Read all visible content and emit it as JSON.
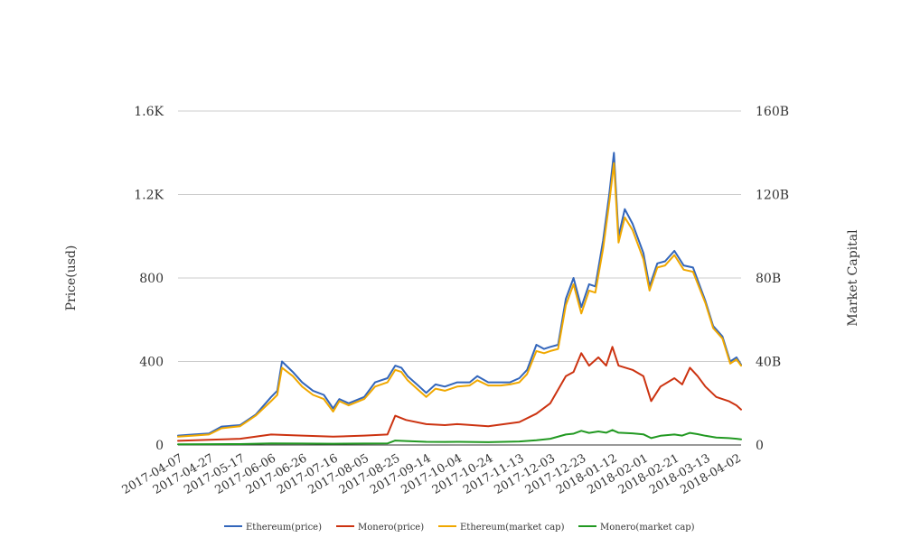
{
  "chart_data": {
    "type": "line",
    "title": "",
    "ylabel_left": "Price(usd)",
    "ylabel_right": "Market Capital",
    "ylim_left": [
      0,
      1600
    ],
    "ylim_right": [
      0,
      160000000000
    ],
    "yticks_left": [
      {
        "value": 0,
        "label": "0"
      },
      {
        "value": 400,
        "label": "400"
      },
      {
        "value": 800,
        "label": "800"
      },
      {
        "value": 1200,
        "label": "1.2K"
      },
      {
        "value": 1600,
        "label": "1.6K"
      }
    ],
    "yticks_right": [
      {
        "value": 0,
        "label": "0"
      },
      {
        "value": 40000000000,
        "label": "40B"
      },
      {
        "value": 80000000000,
        "label": "80B"
      },
      {
        "value": 120000000000,
        "label": "120B"
      },
      {
        "value": 160000000000,
        "label": "160B"
      }
    ],
    "x_range": [
      "2017-04-07",
      "2018-04-05"
    ],
    "xticks": [
      "2017-04-07",
      "2017-04-27",
      "2017-05-17",
      "2017-06-06",
      "2017-06-26",
      "2017-07-16",
      "2017-08-05",
      "2017-08-25",
      "2017-09-14",
      "2017-10-04",
      "2017-10-24",
      "2017-11-13",
      "2017-12-03",
      "2017-12-23",
      "2018-01-12",
      "2018-02-01",
      "2018-02-21",
      "2018-03-13",
      "2018-04-02"
    ],
    "grid": true,
    "legend_position": "bottom",
    "series": [
      {
        "name": "Ethereum(price)",
        "axis": "left",
        "color": "#3366bb",
        "x": [
          "2017-04-07",
          "2017-04-17",
          "2017-04-27",
          "2017-05-05",
          "2017-05-17",
          "2017-05-27",
          "2017-06-06",
          "2017-06-10",
          "2017-06-13",
          "2017-06-20",
          "2017-06-26",
          "2017-07-03",
          "2017-07-10",
          "2017-07-16",
          "2017-07-20",
          "2017-07-26",
          "2017-08-05",
          "2017-08-12",
          "2017-08-20",
          "2017-08-25",
          "2017-08-29",
          "2017-09-02",
          "2017-09-08",
          "2017-09-14",
          "2017-09-20",
          "2017-09-26",
          "2017-10-04",
          "2017-10-12",
          "2017-10-17",
          "2017-10-24",
          "2017-11-01",
          "2017-11-07",
          "2017-11-13",
          "2017-11-18",
          "2017-11-24",
          "2017-11-29",
          "2017-12-03",
          "2017-12-08",
          "2017-12-13",
          "2017-12-18",
          "2017-12-23",
          "2017-12-28",
          "2018-01-01",
          "2018-01-06",
          "2018-01-10",
          "2018-01-13",
          "2018-01-16",
          "2018-01-20",
          "2018-01-25",
          "2018-02-01",
          "2018-02-05",
          "2018-02-10",
          "2018-02-15",
          "2018-02-21",
          "2018-02-27",
          "2018-03-05",
          "2018-03-13",
          "2018-03-18",
          "2018-03-24",
          "2018-03-29",
          "2018-04-02",
          "2018-04-05"
        ],
        "values": [
          45,
          50,
          55,
          88,
          95,
          145,
          230,
          260,
          400,
          350,
          300,
          260,
          240,
          175,
          220,
          200,
          230,
          300,
          320,
          380,
          370,
          330,
          290,
          250,
          290,
          280,
          300,
          300,
          330,
          300,
          300,
          300,
          320,
          360,
          480,
          460,
          470,
          480,
          700,
          800,
          660,
          770,
          760,
          980,
          1200,
          1400,
          1000,
          1130,
          1060,
          920,
          760,
          870,
          880,
          930,
          860,
          850,
          690,
          570,
          520,
          400,
          420,
          385
        ]
      },
      {
        "name": "Monero(price)",
        "axis": "left",
        "color": "#cc3311",
        "x": [
          "2017-04-07",
          "2017-04-27",
          "2017-05-17",
          "2017-06-06",
          "2017-06-26",
          "2017-07-16",
          "2017-08-05",
          "2017-08-20",
          "2017-08-25",
          "2017-09-01",
          "2017-09-14",
          "2017-09-26",
          "2017-10-04",
          "2017-10-24",
          "2017-11-13",
          "2017-11-24",
          "2017-12-03",
          "2017-12-13",
          "2017-12-18",
          "2017-12-23",
          "2017-12-28",
          "2018-01-03",
          "2018-01-08",
          "2018-01-12",
          "2018-01-16",
          "2018-01-25",
          "2018-02-01",
          "2018-02-06",
          "2018-02-12",
          "2018-02-21",
          "2018-02-26",
          "2018-03-03",
          "2018-03-08",
          "2018-03-13",
          "2018-03-20",
          "2018-03-28",
          "2018-04-02",
          "2018-04-05"
        ],
        "values": [
          20,
          25,
          30,
          50,
          45,
          40,
          45,
          50,
          140,
          120,
          100,
          95,
          100,
          90,
          110,
          150,
          200,
          330,
          350,
          440,
          380,
          420,
          380,
          470,
          380,
          360,
          330,
          210,
          280,
          320,
          290,
          370,
          330,
          280,
          230,
          210,
          190,
          170
        ]
      },
      {
        "name": "Ethereum(market cap)",
        "axis": "right",
        "color": "#f0a800",
        "x": [
          "2017-04-07",
          "2017-04-17",
          "2017-04-27",
          "2017-05-05",
          "2017-05-17",
          "2017-05-27",
          "2017-06-06",
          "2017-06-10",
          "2017-06-13",
          "2017-06-20",
          "2017-06-26",
          "2017-07-03",
          "2017-07-10",
          "2017-07-16",
          "2017-07-20",
          "2017-07-26",
          "2017-08-05",
          "2017-08-12",
          "2017-08-20",
          "2017-08-25",
          "2017-08-29",
          "2017-09-02",
          "2017-09-08",
          "2017-09-14",
          "2017-09-20",
          "2017-09-26",
          "2017-10-04",
          "2017-10-12",
          "2017-10-17",
          "2017-10-24",
          "2017-11-01",
          "2017-11-07",
          "2017-11-13",
          "2017-11-18",
          "2017-11-24",
          "2017-11-29",
          "2017-12-03",
          "2017-12-08",
          "2017-12-13",
          "2017-12-18",
          "2017-12-23",
          "2017-12-28",
          "2018-01-01",
          "2018-01-06",
          "2018-01-10",
          "2018-01-13",
          "2018-01-16",
          "2018-01-20",
          "2018-01-25",
          "2018-02-01",
          "2018-02-05",
          "2018-02-10",
          "2018-02-15",
          "2018-02-21",
          "2018-02-27",
          "2018-03-05",
          "2018-03-13",
          "2018-03-18",
          "2018-03-24",
          "2018-03-29",
          "2018-04-02",
          "2018-04-05"
        ],
        "values": [
          4000000000,
          4500000000,
          5000000000,
          8000000000,
          9000000000,
          14000000000,
          21000000000,
          24000000000,
          37000000000,
          33000000000,
          28000000000,
          24000000000,
          22000000000,
          16000000000,
          21000000000,
          19000000000,
          22000000000,
          28000000000,
          30000000000,
          36000000000,
          35000000000,
          31000000000,
          27000000000,
          23000000000,
          27000000000,
          26000000000,
          28000000000,
          28500000000,
          31000000000,
          28500000000,
          28500000000,
          29000000000,
          30000000000,
          34000000000,
          45000000000,
          44000000000,
          45000000000,
          46000000000,
          67000000000,
          77000000000,
          63000000000,
          74000000000,
          73000000000,
          94000000000,
          116000000000,
          135000000000,
          97000000000,
          109000000000,
          103000000000,
          89000000000,
          74000000000,
          85000000000,
          86000000000,
          91000000000,
          84000000000,
          83000000000,
          68000000000,
          56000000000,
          51000000000,
          39000000000,
          41000000000,
          38000000000
        ]
      },
      {
        "name": "Monero(market cap)",
        "axis": "right",
        "color": "#229922",
        "x": [
          "2017-04-07",
          "2017-04-27",
          "2017-05-17",
          "2017-06-06",
          "2017-06-26",
          "2017-07-16",
          "2017-08-05",
          "2017-08-20",
          "2017-08-25",
          "2017-09-01",
          "2017-09-14",
          "2017-09-26",
          "2017-10-04",
          "2017-10-24",
          "2017-11-13",
          "2017-11-24",
          "2017-12-03",
          "2017-12-13",
          "2017-12-18",
          "2017-12-23",
          "2017-12-28",
          "2018-01-03",
          "2018-01-08",
          "2018-01-12",
          "2018-01-16",
          "2018-01-25",
          "2018-02-01",
          "2018-02-06",
          "2018-02-12",
          "2018-02-21",
          "2018-02-26",
          "2018-03-03",
          "2018-03-08",
          "2018-03-13",
          "2018-03-20",
          "2018-03-28",
          "2018-04-02",
          "2018-04-05"
        ],
        "values": [
          300000000,
          400000000,
          450000000,
          750000000,
          700000000,
          600000000,
          700000000,
          750000000,
          2100000000,
          1900000000,
          1500000000,
          1450000000,
          1500000000,
          1350000000,
          1700000000,
          2300000000,
          3000000000,
          5000000000,
          5400000000,
          6800000000,
          5800000000,
          6500000000,
          5900000000,
          7200000000,
          5900000000,
          5600000000,
          5100000000,
          3300000000,
          4400000000,
          5000000000,
          4500000000,
          5800000000,
          5200000000,
          4400000000,
          3600000000,
          3300000000,
          3000000000,
          2700000000
        ]
      }
    ]
  }
}
